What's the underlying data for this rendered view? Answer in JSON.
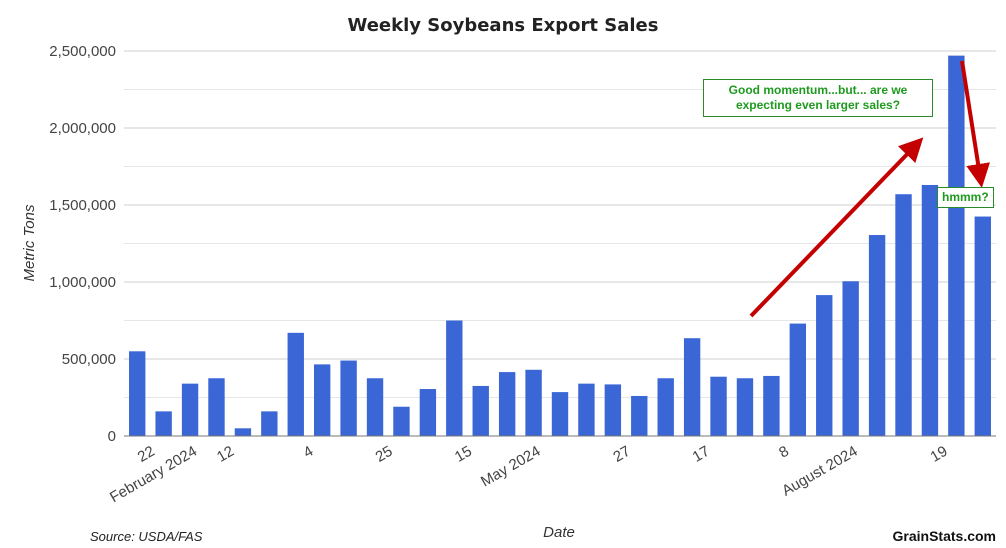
{
  "chart_data": {
    "type": "bar",
    "title": "Weekly Soybeans Export Sales",
    "xlabel": "Date",
    "ylabel": "Metric Tons",
    "ylim": [
      0,
      2500000
    ],
    "yticks": [
      "0",
      "500,000",
      "1,000,000",
      "1,500,000",
      "2,000,000",
      "2,500,000"
    ],
    "ytick_values": [
      0,
      500000,
      1000000,
      1500000,
      2000000,
      2500000
    ],
    "xtick_labels": [
      {
        "index": 0.7,
        "label": "22"
      },
      {
        "index": 2.3,
        "label": "February 2024"
      },
      {
        "index": 3.7,
        "label": "12"
      },
      {
        "index": 6.7,
        "label": "4"
      },
      {
        "index": 9.7,
        "label": "25"
      },
      {
        "index": 12.7,
        "label": "15"
      },
      {
        "index": 15.3,
        "label": "May 2024"
      },
      {
        "index": 18.7,
        "label": "27"
      },
      {
        "index": 21.7,
        "label": "17"
      },
      {
        "index": 24.7,
        "label": "8"
      },
      {
        "index": 27.3,
        "label": "August 2024"
      },
      {
        "index": 30.7,
        "label": "19"
      }
    ],
    "values": [
      550000,
      160000,
      340000,
      375000,
      50000,
      160000,
      670000,
      465000,
      490000,
      375000,
      190000,
      305000,
      750000,
      325000,
      415000,
      430000,
      285000,
      340000,
      335000,
      260000,
      375000,
      635000,
      385000,
      375000,
      390000,
      730000,
      915000,
      1005000,
      1305000,
      1570000,
      1630000,
      2470000,
      1425000
    ],
    "bar_color": "#3a66d6",
    "grid": true
  },
  "annotations": {
    "callout_main": "Good momentum...but... are we expecting even larger sales?",
    "callout_small": "hmmm?",
    "arrow_color": "#c40000",
    "text_color": "#1e9a1e"
  },
  "footer": {
    "source": "Source: USDA/FAS",
    "brand": "GrainStats.com"
  }
}
